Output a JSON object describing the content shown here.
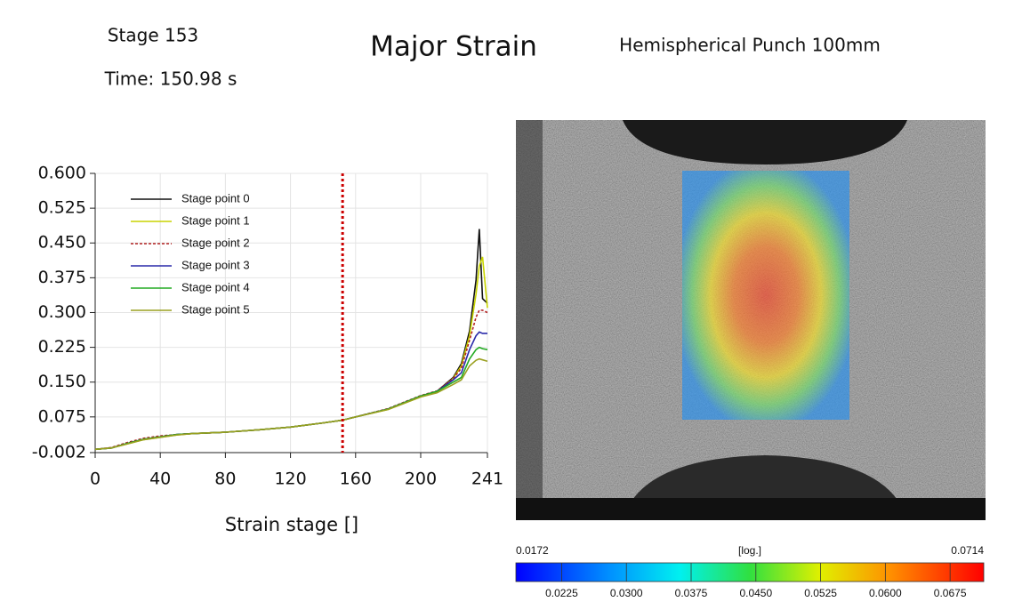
{
  "chart_data": {
    "type": "line",
    "title": "Major Strain",
    "subtitle": "Hemispherical Punch 100mm",
    "stage_label": "Stage 153",
    "time_label": "Time: 150.98 s",
    "xlabel": "Strain stage []",
    "grid": true,
    "legend": "upper left",
    "current_x": 152,
    "current_color": "#cc0000",
    "x": [
      0,
      10,
      20,
      30,
      40,
      50,
      60,
      80,
      100,
      120,
      140,
      152,
      160,
      180,
      200,
      210,
      220,
      225,
      230,
      234,
      236,
      238,
      241
    ],
    "xlim": [
      0,
      241
    ],
    "xticks": [
      0,
      40,
      80,
      120,
      160,
      200,
      241
    ],
    "ylim": [
      -0.002,
      0.6
    ],
    "yticks": [
      -0.002,
      0.075,
      {
        "value": 0.15,
        "label": "0.150"
      },
      0.225,
      {
        "value": 0.3,
        "label": "0.300"
      },
      0.375,
      {
        "value": 0.45,
        "label": "0.450"
      },
      0.525,
      {
        "value": 0.6,
        "label": "0.600"
      }
    ],
    "series": [
      {
        "name": "Stage point 0",
        "color": "#111111",
        "values": [
          0.005,
          0.008,
          0.018,
          0.027,
          0.032,
          0.037,
          0.039,
          0.042,
          0.047,
          0.053,
          0.062,
          0.068,
          0.075,
          0.092,
          0.12,
          0.13,
          0.16,
          0.19,
          0.26,
          0.37,
          0.48,
          0.33,
          0.32
        ]
      },
      {
        "name": "Stage point 1",
        "color": "#c8d400",
        "values": [
          0.005,
          0.008,
          0.017,
          0.026,
          0.031,
          0.036,
          0.039,
          0.042,
          0.047,
          0.053,
          0.062,
          0.068,
          0.075,
          0.091,
          0.118,
          0.128,
          0.158,
          0.185,
          0.25,
          0.34,
          0.4,
          0.42,
          0.31
        ]
      },
      {
        "name": "Stage point 2",
        "color": "#b22222",
        "dashed": true,
        "values": [
          0.005,
          0.009,
          0.02,
          0.029,
          0.034,
          0.037,
          0.039,
          0.042,
          0.047,
          0.053,
          0.062,
          0.068,
          0.075,
          0.093,
          0.121,
          0.131,
          0.158,
          0.18,
          0.24,
          0.29,
          0.305,
          0.305,
          0.3
        ]
      },
      {
        "name": "Stage point 3",
        "color": "#2a2aaa",
        "values": [
          0.005,
          0.008,
          0.018,
          0.027,
          0.032,
          0.037,
          0.039,
          0.042,
          0.047,
          0.053,
          0.062,
          0.068,
          0.075,
          0.092,
          0.12,
          0.13,
          0.155,
          0.17,
          0.22,
          0.25,
          0.258,
          0.255,
          0.255
        ]
      },
      {
        "name": "Stage point 4",
        "color": "#22aa22",
        "values": [
          0.005,
          0.008,
          0.018,
          0.027,
          0.032,
          0.037,
          0.039,
          0.042,
          0.047,
          0.053,
          0.062,
          0.068,
          0.075,
          0.092,
          0.12,
          0.13,
          0.15,
          0.16,
          0.2,
          0.22,
          0.225,
          0.222,
          0.22
        ]
      },
      {
        "name": "Stage point 5",
        "color": "#9aa020",
        "values": [
          0.005,
          0.008,
          0.017,
          0.026,
          0.031,
          0.036,
          0.039,
          0.042,
          0.047,
          0.053,
          0.062,
          0.068,
          0.075,
          0.091,
          0.118,
          0.127,
          0.145,
          0.155,
          0.185,
          0.197,
          0.2,
          0.198,
          0.195
        ]
      }
    ],
    "colorbar": {
      "min": 0.0172,
      "max": 0.0714,
      "scale_label": "[log.]",
      "ticks": [
        0.0225,
        {
          "value": 0.03,
          "label": "0.0300"
        },
        0.0375,
        {
          "value": 0.045,
          "label": "0.0450"
        },
        0.0525,
        {
          "value": 0.06,
          "label": "0.0600"
        },
        0.0675
      ]
    }
  }
}
